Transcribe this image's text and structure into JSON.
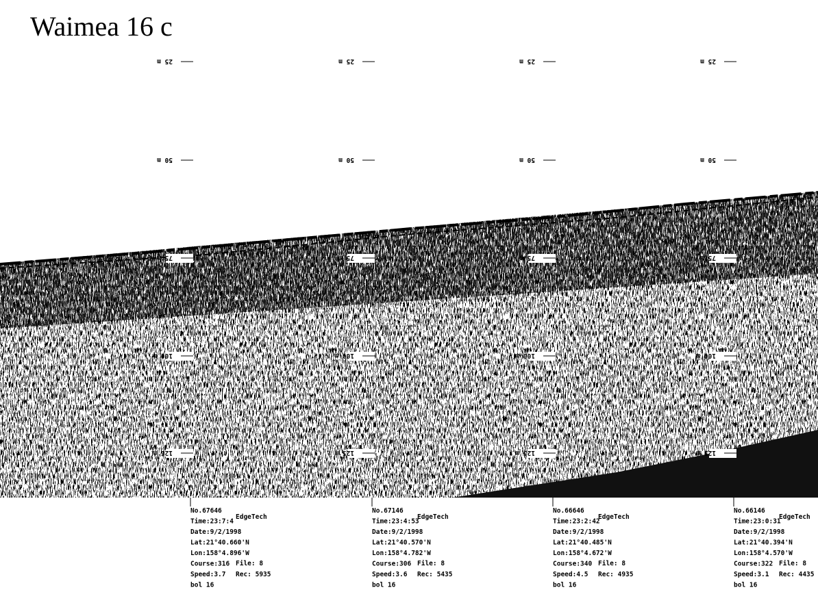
{
  "title": "Waimea 16 c",
  "depth_labels": [
    "25 m",
    "50 m",
    "75 m",
    "100 m",
    "125 m"
  ],
  "records": [
    {
      "no": "No.67646",
      "time": "Time:23:7:4",
      "date": "Date:9/2/1998",
      "lat": "Lat:21°40.660'N",
      "lon": "Lon:158°4.896'W",
      "course": "Course:316",
      "speed": "Speed:3.7",
      "line": "bol 16",
      "brand": "EdgeTech",
      "file": "File: 8",
      "rec": "Rec: 5935"
    },
    {
      "no": "No.67146",
      "time": "Time:23:4:53",
      "date": "Date:9/2/1998",
      "lat": "Lat:21°40.570'N",
      "lon": "Lon:158°4.782'W",
      "course": "Course:306",
      "speed": "Speed:3.6",
      "line": "bol 16",
      "brand": "EdgeTech",
      "file": "File: 8",
      "rec": "Rec: 5435"
    },
    {
      "no": "No.66646",
      "time": "Time:23:2:42",
      "date": "Date:9/2/1998",
      "lat": "Lat:21°40.485'N",
      "lon": "Lon:158°4.672'W",
      "course": "Course:340",
      "speed": "Speed:4.5",
      "line": "bol 16",
      "brand": "EdgeTech",
      "file": "File: 8",
      "rec": "Rec: 4935"
    },
    {
      "no": "No.66146",
      "time": "Time:23:0:31",
      "date": "Date:9/2/1998",
      "lat": "Lat:21°40.394'N",
      "lon": "Lon:158°4.570'W",
      "course": "Course:322",
      "speed": "Speed:3.1",
      "line": "bol 16",
      "brand": "EdgeTech",
      "file": "File: 8",
      "rec": "Rec: 4435"
    }
  ]
}
